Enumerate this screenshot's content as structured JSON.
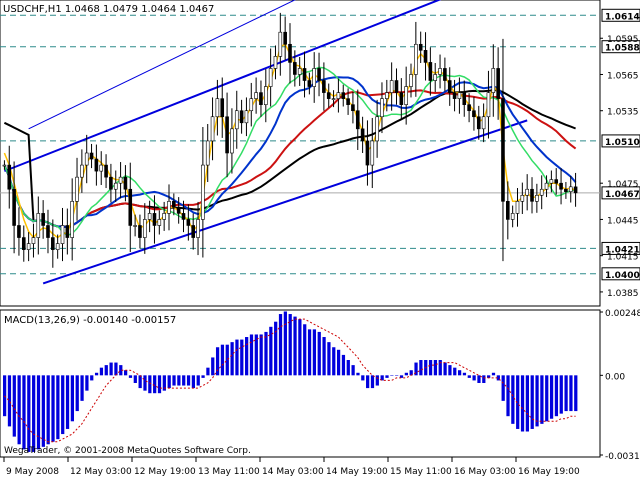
{
  "chart_data": [
    {
      "type": "candlestick",
      "title": "USDCHF,H1 1.0468 1.0479 1.0464 1.0467",
      "symbol": "USDCHF",
      "timeframe": "H1",
      "ohlc_last": {
        "open": 1.0468,
        "high": 1.0479,
        "low": 1.0464,
        "close": 1.0467
      },
      "ylim": [
        1.0375,
        1.0625
      ],
      "y_ticks": [
        "1.0595",
        "1.0565",
        "1.0535",
        "1.0475",
        "1.0445",
        "1.0415",
        "1.0385"
      ],
      "x_ticks": [
        "9 May 2008",
        "12 May 03:00",
        "12 May 19:00",
        "13 May 11:00",
        "14 May 03:00",
        "14 May 19:00",
        "15 May 11:00",
        "16 May 03:00",
        "16 May 19:00"
      ],
      "horizontal_levels": [
        {
          "value": 1.0614,
          "label": "1.0614"
        },
        {
          "value": 1.0588,
          "label": "1.0588"
        },
        {
          "value": 1.051,
          "label": "1.0510"
        },
        {
          "value": 1.0421,
          "label": "1.0421"
        },
        {
          "value": 1.04,
          "label": "1.0400"
        }
      ],
      "current_price": {
        "value": 1.0467,
        "label": "1.0467"
      },
      "trend_channel": [
        {
          "role": "upper",
          "from": [
            0,
            1.0485
          ],
          "to": [
            95,
            1.0635
          ]
        },
        {
          "role": "lower",
          "from": [
            8,
            1.0392
          ],
          "to": [
            108,
            1.0527
          ]
        },
        {
          "role": "parallel",
          "from": [
            5,
            1.052
          ],
          "to": [
            72,
            1.065
          ]
        }
      ],
      "close": [
        1.049,
        1.047,
        1.044,
        1.043,
        1.042,
        1.0425,
        1.043,
        1.045,
        1.044,
        1.043,
        1.042,
        1.0425,
        1.044,
        1.043,
        1.046,
        1.048,
        1.049,
        1.05,
        1.0495,
        1.0485,
        1.049,
        1.048,
        1.047,
        1.0475,
        1.048,
        1.047,
        1.044,
        1.044,
        1.043,
        1.0445,
        1.045,
        1.044,
        1.0445,
        1.045,
        1.046,
        1.0455,
        1.045,
        1.0445,
        1.044,
        1.043,
        1.0445,
        1.049,
        1.051,
        1.053,
        1.0545,
        1.053,
        1.05,
        1.052,
        1.0535,
        1.0525,
        1.0535,
        1.0545,
        1.055,
        1.054,
        1.0555,
        1.057,
        1.058,
        1.06,
        1.059,
        1.0575,
        1.0565,
        1.057,
        1.056,
        1.0555,
        1.057,
        1.056,
        1.055,
        1.0545,
        1.0545,
        1.055,
        1.0545,
        1.054,
        1.0535,
        1.052,
        1.051,
        1.049,
        1.051,
        1.053,
        1.0545,
        1.055,
        1.056,
        1.055,
        1.054,
        1.0555,
        1.0565,
        1.059,
        1.0585,
        1.0575,
        1.056,
        1.0565,
        1.057,
        1.056,
        1.055,
        1.0545,
        1.055,
        1.054,
        1.0535,
        1.053,
        1.052,
        1.053,
        1.055,
        1.057,
        1.0545,
        1.046,
        1.0445,
        1.045,
        1.046,
        1.0465,
        1.047,
        1.046,
        1.0465,
        1.047,
        1.0475,
        1.0478,
        1.0475,
        1.047,
        1.0468,
        1.0472,
        1.0467
      ],
      "indicators": [
        {
          "name": "fast MA",
          "color": "#ffc000",
          "values": [
            1.05,
            1.049,
            1.0475,
            1.046,
            1.0445,
            1.0435,
            1.043,
            1.0435,
            1.0438,
            1.0437,
            1.0433,
            1.043,
            1.0433,
            1.0434,
            1.0445,
            1.0462,
            1.0478,
            1.0492,
            1.0498,
            1.0495,
            1.0492,
            1.0488,
            1.048,
            1.0478,
            1.0478,
            1.0474,
            1.046,
            1.0448,
            1.0438,
            1.044,
            1.0445,
            1.0442,
            1.0444,
            1.0448,
            1.0455,
            1.0455,
            1.0452,
            1.0448,
            1.0444,
            1.0436,
            1.044,
            1.0465,
            1.049,
            1.0512,
            1.053,
            1.053,
            1.0515,
            1.0518,
            1.0528,
            1.0527,
            1.0531,
            1.0538,
            1.0545,
            1.0542,
            1.0549,
            1.056,
            1.0572,
            1.0588,
            1.059,
            1.0582,
            1.0573,
            1.0572,
            1.0566,
            1.056,
            1.0565,
            1.0562,
            1.0555,
            1.055,
            1.0547,
            1.0549,
            1.0547,
            1.0543,
            1.0539,
            1.0528,
            1.0518,
            1.0502,
            1.0506,
            1.0518,
            1.0532,
            1.0542,
            1.0552,
            1.0551,
            1.0545,
            1.055,
            1.0558,
            1.0576,
            1.0582,
            1.0578,
            1.0568,
            1.0566,
            1.0568,
            1.0564,
            1.0556,
            1.055,
            1.055,
            1.0545,
            1.054,
            1.0535,
            1.0526,
            1.0528,
            1.054,
            1.0556,
            1.055,
            1.0503,
            1.0473,
            1.046,
            1.046,
            1.0463,
            1.0467,
            1.0463,
            1.0464,
            1.0467,
            1.0471,
            1.0475,
            1.0475,
            1.0472,
            1.047,
            1.0471,
            1.0469
          ]
        }
      ]
    },
    {
      "type": "bar",
      "title": "MACD(13,26,9) -0.00140 -0.00157",
      "indicator": "MACD",
      "params": [
        13,
        26,
        9
      ],
      "main_value": -0.0014,
      "signal_value": -0.00157,
      "ylim": [
        -0.00312,
        0.00248
      ],
      "y_ticks": [
        "0.00248",
        "0.00",
        "-0.00312"
      ],
      "histogram": [
        -0.0016,
        -0.002,
        -0.0024,
        -0.0027,
        -0.0029,
        -0.003,
        -0.003,
        -0.0029,
        -0.0028,
        -0.0027,
        -0.0026,
        -0.0025,
        -0.0023,
        -0.0021,
        -0.0018,
        -0.0014,
        -0.001,
        -0.0006,
        -0.0002,
        0.0001,
        0.0003,
        0.0004,
        0.0005,
        0.0005,
        0.0004,
        0.0002,
        -0.0001,
        -0.0003,
        -0.0005,
        -0.0006,
        -0.0007,
        -0.0007,
        -0.0007,
        -0.0006,
        -0.0005,
        -0.0004,
        -0.0004,
        -0.0004,
        -0.0004,
        -0.0005,
        -0.0004,
        -0.0001,
        0.0003,
        0.0007,
        0.0011,
        0.0012,
        0.0012,
        0.0013,
        0.0014,
        0.0014,
        0.0015,
        0.0016,
        0.0016,
        0.0016,
        0.0017,
        0.0019,
        0.0021,
        0.0024,
        0.0025,
        0.0024,
        0.0023,
        0.0022,
        0.002,
        0.0018,
        0.0018,
        0.0017,
        0.0015,
        0.0013,
        0.0011,
        0.001,
        0.0008,
        0.0006,
        0.0004,
        0.0001,
        -0.0002,
        -0.0005,
        -0.0005,
        -0.0004,
        -0.0002,
        -0.0001,
        0.0,
        0.0,
        -0.0001,
        0.0001,
        0.0002,
        0.0005,
        0.0006,
        0.0006,
        0.0006,
        0.0006,
        0.0006,
        0.0005,
        0.0004,
        0.0003,
        0.0002,
        0.0001,
        -0.0001,
        -0.0002,
        -0.0003,
        -0.0003,
        -0.0001,
        0.0001,
        -0.0002,
        -0.001,
        -0.0016,
        -0.0019,
        -0.0021,
        -0.0022,
        -0.0022,
        -0.0021,
        -0.002,
        -0.0019,
        -0.0018,
        -0.0017,
        -0.0016,
        -0.0015,
        -0.0014,
        -0.0014,
        -0.0014
      ],
      "signal": [
        -0.0008,
        -0.001,
        -0.0013,
        -0.0016,
        -0.0018,
        -0.0021,
        -0.0023,
        -0.0024,
        -0.0025,
        -0.0026,
        -0.0026,
        -0.0026,
        -0.0025,
        -0.0024,
        -0.0023,
        -0.0021,
        -0.0019,
        -0.0016,
        -0.0013,
        -0.001,
        -0.0007,
        -0.0004,
        -0.0002,
        0.0,
        0.0002,
        0.0002,
        0.0002,
        0.0001,
        0.0,
        -0.0002,
        -0.0003,
        -0.0004,
        -0.0005,
        -0.0005,
        -0.0005,
        -0.0005,
        -0.0005,
        -0.0005,
        -0.0005,
        -0.0005,
        -0.0005,
        -0.0004,
        -0.0003,
        -0.0001,
        0.0002,
        0.0004,
        0.0006,
        0.0008,
        0.001,
        0.0011,
        0.0012,
        0.0013,
        0.0014,
        0.0015,
        0.0015,
        0.0016,
        0.0017,
        0.0019,
        0.002,
        0.0021,
        0.0022,
        0.0022,
        0.0022,
        0.0021,
        0.002,
        0.0019,
        0.0018,
        0.0017,
        0.0016,
        0.0015,
        0.0013,
        0.0011,
        0.0009,
        0.0007,
        0.0004,
        0.0002,
        0.0,
        -0.0001,
        -0.0002,
        -0.0002,
        -0.0002,
        -0.0001,
        -0.0001,
        -0.0001,
        0.0,
        0.0001,
        0.0002,
        0.0003,
        0.0004,
        0.0004,
        0.0005,
        0.0005,
        0.0005,
        0.0005,
        0.0004,
        0.0003,
        0.0002,
        0.0001,
        0.0,
        -0.0001,
        -0.0001,
        -0.0001,
        -0.0001,
        -0.0003,
        -0.0005,
        -0.0008,
        -0.0011,
        -0.0013,
        -0.0015,
        -0.0017,
        -0.0018,
        -0.0018,
        -0.0018,
        -0.0018,
        -0.0018,
        -0.0017,
        -0.0017,
        -0.0016,
        -0.0016
      ]
    }
  ],
  "colors": {
    "background": "#ffffff",
    "axis_text": "#000000",
    "grid_dashed": "#2e8b8b",
    "channel": "#0000dd",
    "ma_red": "#cc1111",
    "ma_black": "#000000",
    "ma_blue": "#0033cc",
    "ma_green": "#33dd66",
    "ma_yellow": "#ffc000",
    "price_label_bg": "#ffffff",
    "macd_bars": "#0000dd",
    "macd_signal": "#cc0000"
  },
  "watermark": "WegaTrader, © 2001-2008 MetaQuotes Software Corp."
}
